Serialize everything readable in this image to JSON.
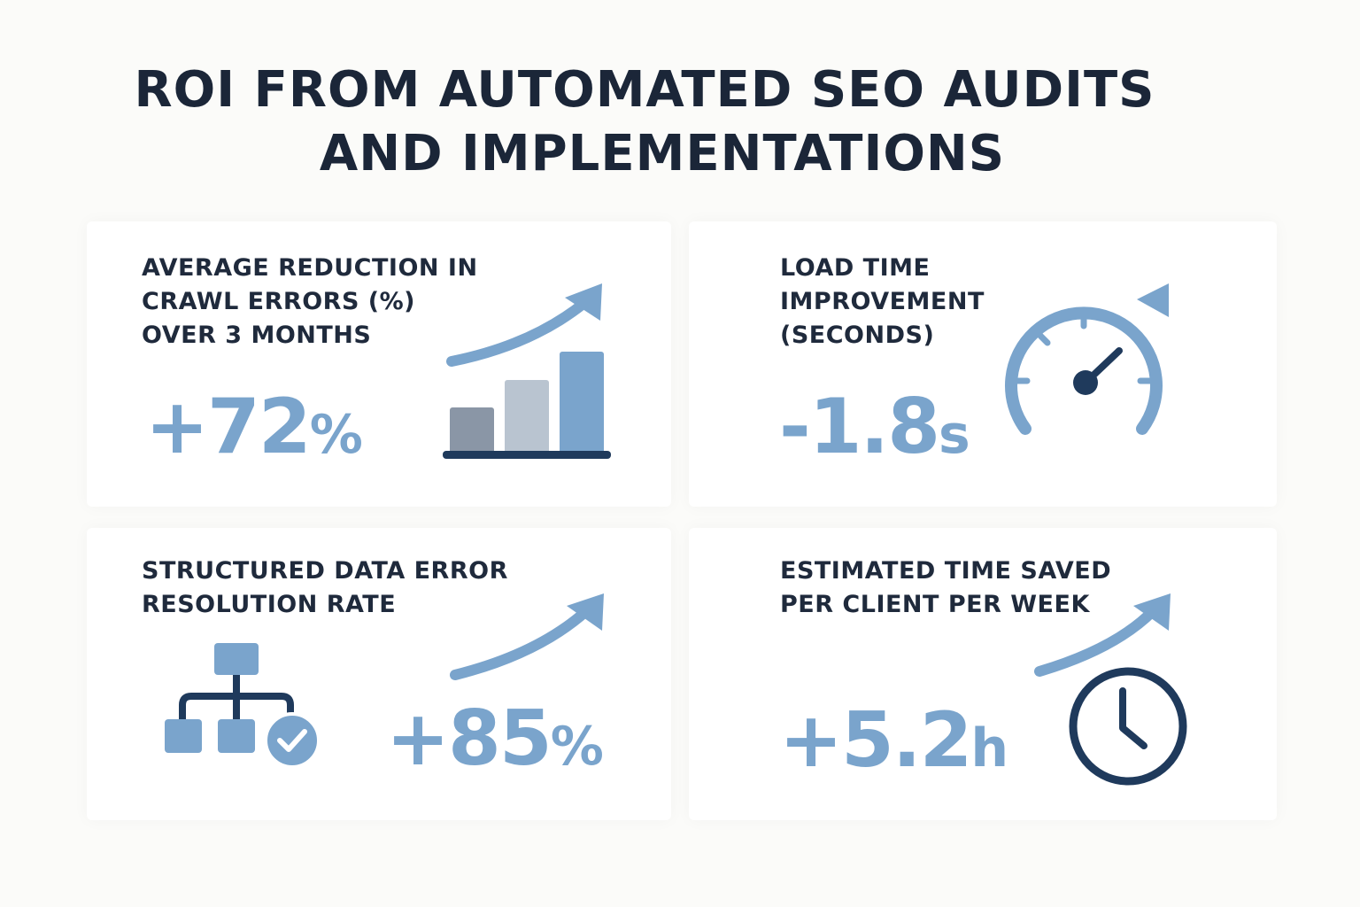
{
  "title": {
    "line1": "ROI FROM AUTOMATED SEO AUDITS",
    "line2": "AND IMPLEMENTATIONS"
  },
  "cards": [
    {
      "label_lines": [
        "AVERAGE REDUCTION IN",
        "CRAWL ERRORS (%)",
        "OVER 3 MONTHS"
      ],
      "metric_number": "+72",
      "metric_unit": "%",
      "icon": "bar-chart-rising-arrow-icon"
    },
    {
      "label_lines": [
        "LOAD TIME",
        "IMPROVEMENT",
        "(SECONDS)"
      ],
      "metric_number": "-1.8",
      "metric_unit": "s",
      "icon": "speedometer-icon"
    },
    {
      "label_lines": [
        "STRUCTURED DATA ERROR",
        "RESOLUTION RATE"
      ],
      "metric_number": "+85",
      "metric_unit": "%",
      "icon": "sitemap-check-icon"
    },
    {
      "label_lines": [
        "ESTIMATED TIME SAVED",
        "PER CLIENT PER WEEK"
      ],
      "metric_number": "+5.2",
      "metric_unit": "h",
      "icon": "clock-icon"
    }
  ],
  "colors": {
    "accent": "#7aa4cc",
    "dark": "#1f3a5c",
    "text": "#1f2a3c",
    "bar_gray": "#8a96a6",
    "bar_light": "#b9c4d0"
  }
}
